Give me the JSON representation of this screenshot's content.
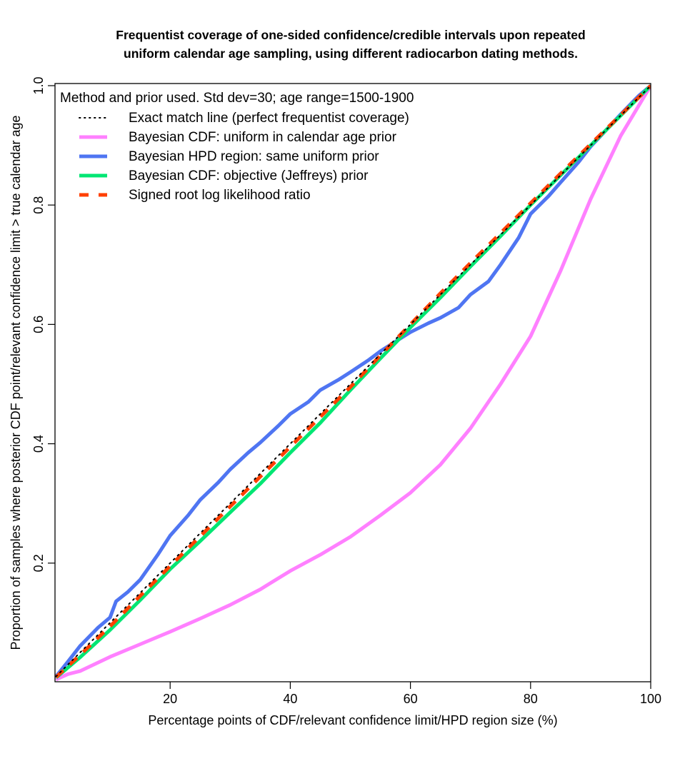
{
  "chart_data": {
    "type": "line",
    "title": [
      "Frequentist coverage of one-sided confidence/credible intervals upon repeated",
      "uniform calendar age sampling, using different radiocarbon dating methods."
    ],
    "xlabel": "Percentage points of CDF/relevant confidence limit/HPD region size (%)",
    "ylabel": "Proportion of samples where posterior CDF point/relevant confidence limit > true calendar age",
    "xlim": [
      1,
      100
    ],
    "ylim": [
      0.01,
      1.0
    ],
    "xticks": [
      20,
      40,
      60,
      80,
      100
    ],
    "xtick_labels": [
      "20",
      "40",
      "60",
      "80",
      "100"
    ],
    "yticks": [
      0.2,
      0.4,
      0.6,
      0.8,
      1.0
    ],
    "ytick_labels": [
      "0.2",
      "0.4",
      "0.6",
      "0.8",
      "1.0"
    ],
    "grid": false,
    "legend": {
      "position": "top-left",
      "title": "Method and prior used. Std dev=30; age range=1500-1900"
    },
    "series": [
      {
        "name": "Exact match line (perfect frequentist coverage)",
        "color": "#000000",
        "style": "dotted",
        "x": [
          1,
          100
        ],
        "y": [
          0.01,
          1.0
        ]
      },
      {
        "name": "Bayesian CDF: uniform in calendar age prior",
        "color": "#ff80ff",
        "style": "solid",
        "x": [
          1,
          3,
          5,
          10,
          15,
          20,
          25,
          30,
          35,
          40,
          45,
          50,
          55,
          60,
          65,
          70,
          75,
          80,
          85,
          90,
          95,
          100
        ],
        "y": [
          0.005,
          0.014,
          0.019,
          0.043,
          0.064,
          0.085,
          0.107,
          0.13,
          0.156,
          0.187,
          0.214,
          0.244,
          0.28,
          0.318,
          0.365,
          0.426,
          0.5,
          0.58,
          0.69,
          0.81,
          0.916,
          1.0
        ]
      },
      {
        "name": "Bayesian HPD region: same uniform prior",
        "color": "#4f75f2",
        "style": "solid",
        "x": [
          1,
          3,
          5,
          8,
          10,
          11,
          13,
          15,
          18,
          20,
          23,
          25,
          28,
          30,
          33,
          35,
          38,
          40,
          43,
          45,
          48,
          50,
          53,
          55,
          57,
          60,
          63,
          65,
          68,
          70,
          73,
          75,
          78,
          80,
          83,
          85,
          88,
          90,
          93,
          95,
          98,
          100
        ],
        "y": [
          0.01,
          0.035,
          0.061,
          0.092,
          0.109,
          0.136,
          0.152,
          0.172,
          0.215,
          0.246,
          0.28,
          0.306,
          0.335,
          0.357,
          0.385,
          0.402,
          0.43,
          0.45,
          0.47,
          0.49,
          0.507,
          0.52,
          0.54,
          0.555,
          0.568,
          0.587,
          0.602,
          0.611,
          0.628,
          0.65,
          0.672,
          0.7,
          0.745,
          0.785,
          0.815,
          0.838,
          0.872,
          0.898,
          0.93,
          0.952,
          0.983,
          1.0
        ]
      },
      {
        "name": "Bayesian CDF: objective (Jeffreys) prior",
        "color": "#00e673",
        "style": "solid",
        "x": [
          1,
          5,
          10,
          15,
          20,
          25,
          30,
          35,
          40,
          45,
          50,
          55,
          60,
          65,
          70,
          75,
          80,
          85,
          90,
          95,
          100
        ],
        "y": [
          0.008,
          0.042,
          0.088,
          0.138,
          0.19,
          0.237,
          0.285,
          0.333,
          0.385,
          0.435,
          0.49,
          0.543,
          0.595,
          0.645,
          0.697,
          0.748,
          0.8,
          0.85,
          0.9,
          0.95,
          1.0
        ]
      },
      {
        "name": "Signed root log likelihood ratio",
        "color": "#ff4000",
        "style": "dashed",
        "x": [
          1,
          5,
          10,
          15,
          20,
          25,
          30,
          35,
          40,
          45,
          50,
          55,
          60,
          65,
          70,
          75,
          80,
          85,
          90,
          95,
          100
        ],
        "y": [
          0.009,
          0.046,
          0.094,
          0.145,
          0.195,
          0.245,
          0.295,
          0.345,
          0.395,
          0.445,
          0.495,
          0.548,
          0.6,
          0.652,
          0.703,
          0.753,
          0.803,
          0.853,
          0.902,
          0.951,
          1.0
        ]
      }
    ]
  }
}
